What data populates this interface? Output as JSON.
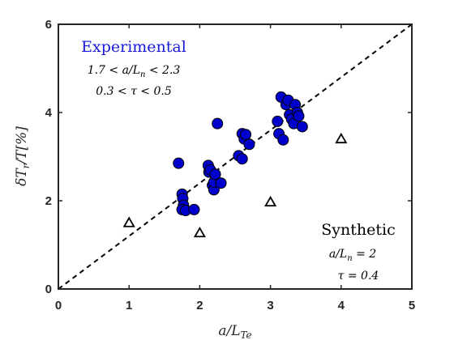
{
  "chart_data": {
    "type": "scatter",
    "xlabel": "a/L_Te",
    "ylabel": "δT_r/T[%]",
    "xlim": [
      0,
      5
    ],
    "ylim": [
      0,
      6
    ],
    "x_ticks": [
      "0",
      "1",
      "2",
      "3",
      "4",
      "5"
    ],
    "y_ticks": [
      "0",
      "2",
      "4",
      "6"
    ],
    "grid": false,
    "reference_line": {
      "style": "dashed",
      "color": "#000000",
      "x": [
        0,
        5
      ],
      "y": [
        0,
        6
      ]
    },
    "colors": {
      "experimental": "#0000cd",
      "experimental_title": "#1a1adb",
      "synthetic": "#ffffff",
      "axis": "#262626"
    },
    "series": [
      {
        "marker": "circle",
        "points": [
          [
            1.7,
            2.85
          ],
          [
            1.75,
            2.15
          ],
          [
            1.76,
            2.05
          ],
          [
            1.77,
            1.9
          ],
          [
            1.75,
            1.8
          ],
          [
            1.8,
            1.78
          ],
          [
            1.92,
            1.8
          ],
          [
            2.12,
            2.8
          ],
          [
            2.13,
            2.65
          ],
          [
            2.15,
            2.7
          ],
          [
            2.18,
            2.35
          ],
          [
            2.2,
            2.25
          ],
          [
            2.2,
            2.42
          ],
          [
            2.22,
            2.6
          ],
          [
            2.25,
            3.75
          ],
          [
            2.3,
            2.4
          ],
          [
            2.55,
            3.02
          ],
          [
            2.6,
            3.52
          ],
          [
            2.6,
            2.95
          ],
          [
            2.63,
            3.4
          ],
          [
            2.65,
            3.5
          ],
          [
            2.7,
            3.28
          ],
          [
            3.1,
            3.8
          ],
          [
            3.12,
            3.52
          ],
          [
            3.15,
            4.35
          ],
          [
            3.18,
            3.38
          ],
          [
            3.22,
            4.18
          ],
          [
            3.25,
            4.28
          ],
          [
            3.27,
            3.95
          ],
          [
            3.3,
            3.85
          ],
          [
            3.33,
            3.75
          ],
          [
            3.35,
            4.18
          ],
          [
            3.38,
            4.0
          ],
          [
            3.4,
            3.92
          ],
          [
            3.45,
            3.68
          ]
        ]
      },
      {
        "marker": "triangle",
        "points": [
          [
            1.0,
            1.5
          ],
          [
            2.0,
            1.27
          ],
          [
            3.0,
            1.97
          ],
          [
            4.0,
            3.4
          ]
        ]
      }
    ],
    "annotations": {
      "experimental": {
        "title": "Experimental",
        "lines": [
          "1.7 < a/L_n < 2.3",
          "0.3 < τ < 0.5"
        ]
      },
      "synthetic": {
        "title": "Synthetic",
        "lines": [
          "a/L_n = 2",
          "τ = 0.4"
        ]
      }
    }
  }
}
